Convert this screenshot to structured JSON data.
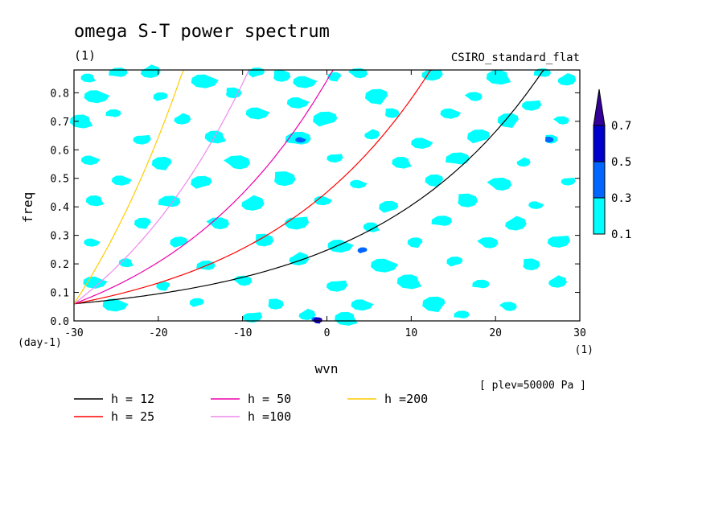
{
  "chart_data": {
    "type": "contour",
    "title": "omega S-T power spectrum",
    "subtitle": "(1)",
    "model": "CSIRO_standard_flat",
    "xlabel": "wvn",
    "x_unit": "(1)",
    "ylabel": "freq",
    "y_unit": "(day-1)",
    "xlim": [
      -30,
      30
    ],
    "ylim": [
      0,
      0.88
    ],
    "xticks": [
      -30,
      -20,
      -10,
      0,
      10,
      20,
      30
    ],
    "xtick_labels": [
      "-30",
      "-20",
      "-10",
      "0",
      "10",
      "20",
      "30"
    ],
    "yticks": [
      0.0,
      0.1,
      0.2,
      0.3,
      0.4,
      0.5,
      0.6,
      0.7,
      0.8
    ],
    "ytick_labels": [
      "0.0",
      "0.1",
      "0.2",
      "0.3",
      "0.4",
      "0.5",
      "0.6",
      "0.7",
      "0.8"
    ],
    "note": "[ plev=50000 Pa ]",
    "colorbar": {
      "levels": [
        0.1,
        0.3,
        0.5,
        0.7
      ],
      "labels": [
        "0.1",
        "0.3",
        "0.5",
        "0.7"
      ],
      "colors": [
        "#00ffff",
        "#0066ff",
        "#0000cc",
        "#330099"
      ]
    },
    "dispersion_curves": [
      {
        "label": "h = 12",
        "h": 12,
        "color": "#000000"
      },
      {
        "label": "h = 25",
        "h": 25,
        "color": "#ff0000"
      },
      {
        "label": "h = 50",
        "h": 50,
        "color": "#ee00aa"
      },
      {
        "label": "h =100",
        "h": 100,
        "color": "#ee88ee"
      },
      {
        "label": "h =200",
        "h": 200,
        "color": "#ffcc00"
      }
    ],
    "contour_blobs": [
      {
        "x": -28.3,
        "y": 0.854,
        "level": 0.1
      },
      {
        "x": -24.6,
        "y": 0.869,
        "level": 0.1
      },
      {
        "x": -21.1,
        "y": 0.872,
        "level": 0.1
      },
      {
        "x": -14.7,
        "y": 0.844,
        "level": 0.1
      },
      {
        "x": -8.2,
        "y": 0.872,
        "level": 0.1
      },
      {
        "x": -5.5,
        "y": 0.856,
        "level": 0.1
      },
      {
        "x": -2.8,
        "y": 0.841,
        "level": 0.1
      },
      {
        "x": 1.0,
        "y": 0.858,
        "level": 0.1
      },
      {
        "x": 3.8,
        "y": 0.866,
        "level": 0.1
      },
      {
        "x": 12.3,
        "y": 0.864,
        "level": 0.1
      },
      {
        "x": 20.4,
        "y": 0.858,
        "level": 0.1
      },
      {
        "x": 25.7,
        "y": 0.868,
        "level": 0.1
      },
      {
        "x": 28.3,
        "y": 0.844,
        "level": 0.1
      },
      {
        "x": -27.5,
        "y": 0.79,
        "level": 0.1
      },
      {
        "x": -19.6,
        "y": 0.787,
        "level": 0.1
      },
      {
        "x": -11.2,
        "y": 0.797,
        "level": 0.1
      },
      {
        "x": -3.6,
        "y": 0.768,
        "level": 0.1
      },
      {
        "x": 6.1,
        "y": 0.79,
        "level": 0.1
      },
      {
        "x": 17.5,
        "y": 0.784,
        "level": 0.1
      },
      {
        "x": 24.1,
        "y": 0.757,
        "level": 0.1
      },
      {
        "x": -29.1,
        "y": 0.703,
        "level": 0.1
      },
      {
        "x": -25.2,
        "y": 0.726,
        "level": 0.1
      },
      {
        "x": -17.3,
        "y": 0.706,
        "level": 0.1
      },
      {
        "x": -8.4,
        "y": 0.731,
        "level": 0.1
      },
      {
        "x": 0.0,
        "y": 0.709,
        "level": 0.1
      },
      {
        "x": 7.6,
        "y": 0.726,
        "level": 0.1
      },
      {
        "x": 14.5,
        "y": 0.73,
        "level": 0.1
      },
      {
        "x": 21.7,
        "y": 0.706,
        "level": 0.1
      },
      {
        "x": 27.9,
        "y": 0.701,
        "level": 0.1
      },
      {
        "x": -22.1,
        "y": 0.637,
        "level": 0.1
      },
      {
        "x": -13.2,
        "y": 0.648,
        "level": 0.1
      },
      {
        "x": -3.2,
        "y": 0.637,
        "level": 0.1
      },
      {
        "x": 5.2,
        "y": 0.652,
        "level": 0.1
      },
      {
        "x": 11.1,
        "y": 0.626,
        "level": 0.1
      },
      {
        "x": 18.2,
        "y": 0.648,
        "level": 0.1
      },
      {
        "x": 26.5,
        "y": 0.635,
        "level": 0.1
      },
      {
        "x": -28.2,
        "y": 0.566,
        "level": 0.1
      },
      {
        "x": -19.4,
        "y": 0.555,
        "level": 0.1
      },
      {
        "x": -10.5,
        "y": 0.552,
        "level": 0.1
      },
      {
        "x": 0.8,
        "y": 0.572,
        "level": 0.1
      },
      {
        "x": 8.9,
        "y": 0.558,
        "level": 0.1
      },
      {
        "x": 15.7,
        "y": 0.566,
        "level": 0.1
      },
      {
        "x": 23.2,
        "y": 0.555,
        "level": 0.1
      },
      {
        "x": -24.5,
        "y": 0.495,
        "level": 0.1
      },
      {
        "x": -14.7,
        "y": 0.487,
        "level": 0.1
      },
      {
        "x": -5.2,
        "y": 0.495,
        "level": 0.1
      },
      {
        "x": 3.6,
        "y": 0.482,
        "level": 0.1
      },
      {
        "x": 12.9,
        "y": 0.495,
        "level": 0.1
      },
      {
        "x": 20.6,
        "y": 0.476,
        "level": 0.1
      },
      {
        "x": 28.5,
        "y": 0.49,
        "level": 0.1
      },
      {
        "x": -27.5,
        "y": 0.424,
        "level": 0.1
      },
      {
        "x": -18.5,
        "y": 0.416,
        "level": 0.1
      },
      {
        "x": -9.0,
        "y": 0.41,
        "level": 0.1
      },
      {
        "x": -0.6,
        "y": 0.424,
        "level": 0.1
      },
      {
        "x": 7.5,
        "y": 0.401,
        "level": 0.1
      },
      {
        "x": 16.5,
        "y": 0.419,
        "level": 0.1
      },
      {
        "x": 24.7,
        "y": 0.408,
        "level": 0.1
      },
      {
        "x": -21.7,
        "y": 0.345,
        "level": 0.1
      },
      {
        "x": -12.8,
        "y": 0.339,
        "level": 0.1
      },
      {
        "x": -3.8,
        "y": 0.345,
        "level": 0.1
      },
      {
        "x": 5.3,
        "y": 0.331,
        "level": 0.1
      },
      {
        "x": 13.8,
        "y": 0.348,
        "level": 0.1
      },
      {
        "x": 22.2,
        "y": 0.339,
        "level": 0.1
      },
      {
        "x": -28.0,
        "y": 0.277,
        "level": 0.1
      },
      {
        "x": -17.4,
        "y": 0.277,
        "level": 0.1
      },
      {
        "x": -7.6,
        "y": 0.28,
        "level": 0.1
      },
      {
        "x": 1.4,
        "y": 0.266,
        "level": 0.1
      },
      {
        "x": 10.6,
        "y": 0.277,
        "level": 0.1
      },
      {
        "x": 19.2,
        "y": 0.271,
        "level": 0.1
      },
      {
        "x": 27.3,
        "y": 0.28,
        "level": 0.1
      },
      {
        "x": -23.8,
        "y": 0.206,
        "level": 0.1
      },
      {
        "x": -14.2,
        "y": 0.192,
        "level": 0.1
      },
      {
        "x": -3.5,
        "y": 0.215,
        "level": 0.1
      },
      {
        "x": 6.6,
        "y": 0.198,
        "level": 0.1
      },
      {
        "x": 15.3,
        "y": 0.209,
        "level": 0.1
      },
      {
        "x": 24.1,
        "y": 0.195,
        "level": 0.1
      },
      {
        "x": -27.7,
        "y": 0.138,
        "level": 0.1
      },
      {
        "x": -19.3,
        "y": 0.124,
        "level": 0.1
      },
      {
        "x": -9.9,
        "y": 0.138,
        "level": 0.1
      },
      {
        "x": 1.0,
        "y": 0.124,
        "level": 0.1
      },
      {
        "x": 9.8,
        "y": 0.141,
        "level": 0.1
      },
      {
        "x": 18.4,
        "y": 0.127,
        "level": 0.1
      },
      {
        "x": 27.2,
        "y": 0.135,
        "level": 0.1
      },
      {
        "x": -25.3,
        "y": 0.059,
        "level": 0.1
      },
      {
        "x": -15.3,
        "y": 0.065,
        "level": 0.1
      },
      {
        "x": -6.2,
        "y": 0.056,
        "level": 0.1
      },
      {
        "x": 4.0,
        "y": 0.059,
        "level": 0.1
      },
      {
        "x": 12.9,
        "y": 0.062,
        "level": 0.1
      },
      {
        "x": 21.6,
        "y": 0.048,
        "level": 0.1
      },
      {
        "x": -9.0,
        "y": 0.014,
        "level": 0.1
      },
      {
        "x": 2.3,
        "y": 0.011,
        "level": 0.1
      },
      {
        "x": 16.1,
        "y": 0.02,
        "level": 0.1
      },
      {
        "x": -2.5,
        "y": 0.02,
        "level": 0.1
      },
      {
        "x": -3.2,
        "y": 0.636,
        "level": 0.3
      },
      {
        "x": 4.3,
        "y": 0.248,
        "level": 0.3
      },
      {
        "x": 26.3,
        "y": 0.634,
        "level": 0.3
      },
      {
        "x": -1.3,
        "y": 0.006,
        "level": 0.3
      },
      {
        "x": -1.0,
        "y": 0.003,
        "level": 0.5
      },
      {
        "x": -0.9,
        "y": 0.0,
        "level": 0.7
      }
    ]
  }
}
